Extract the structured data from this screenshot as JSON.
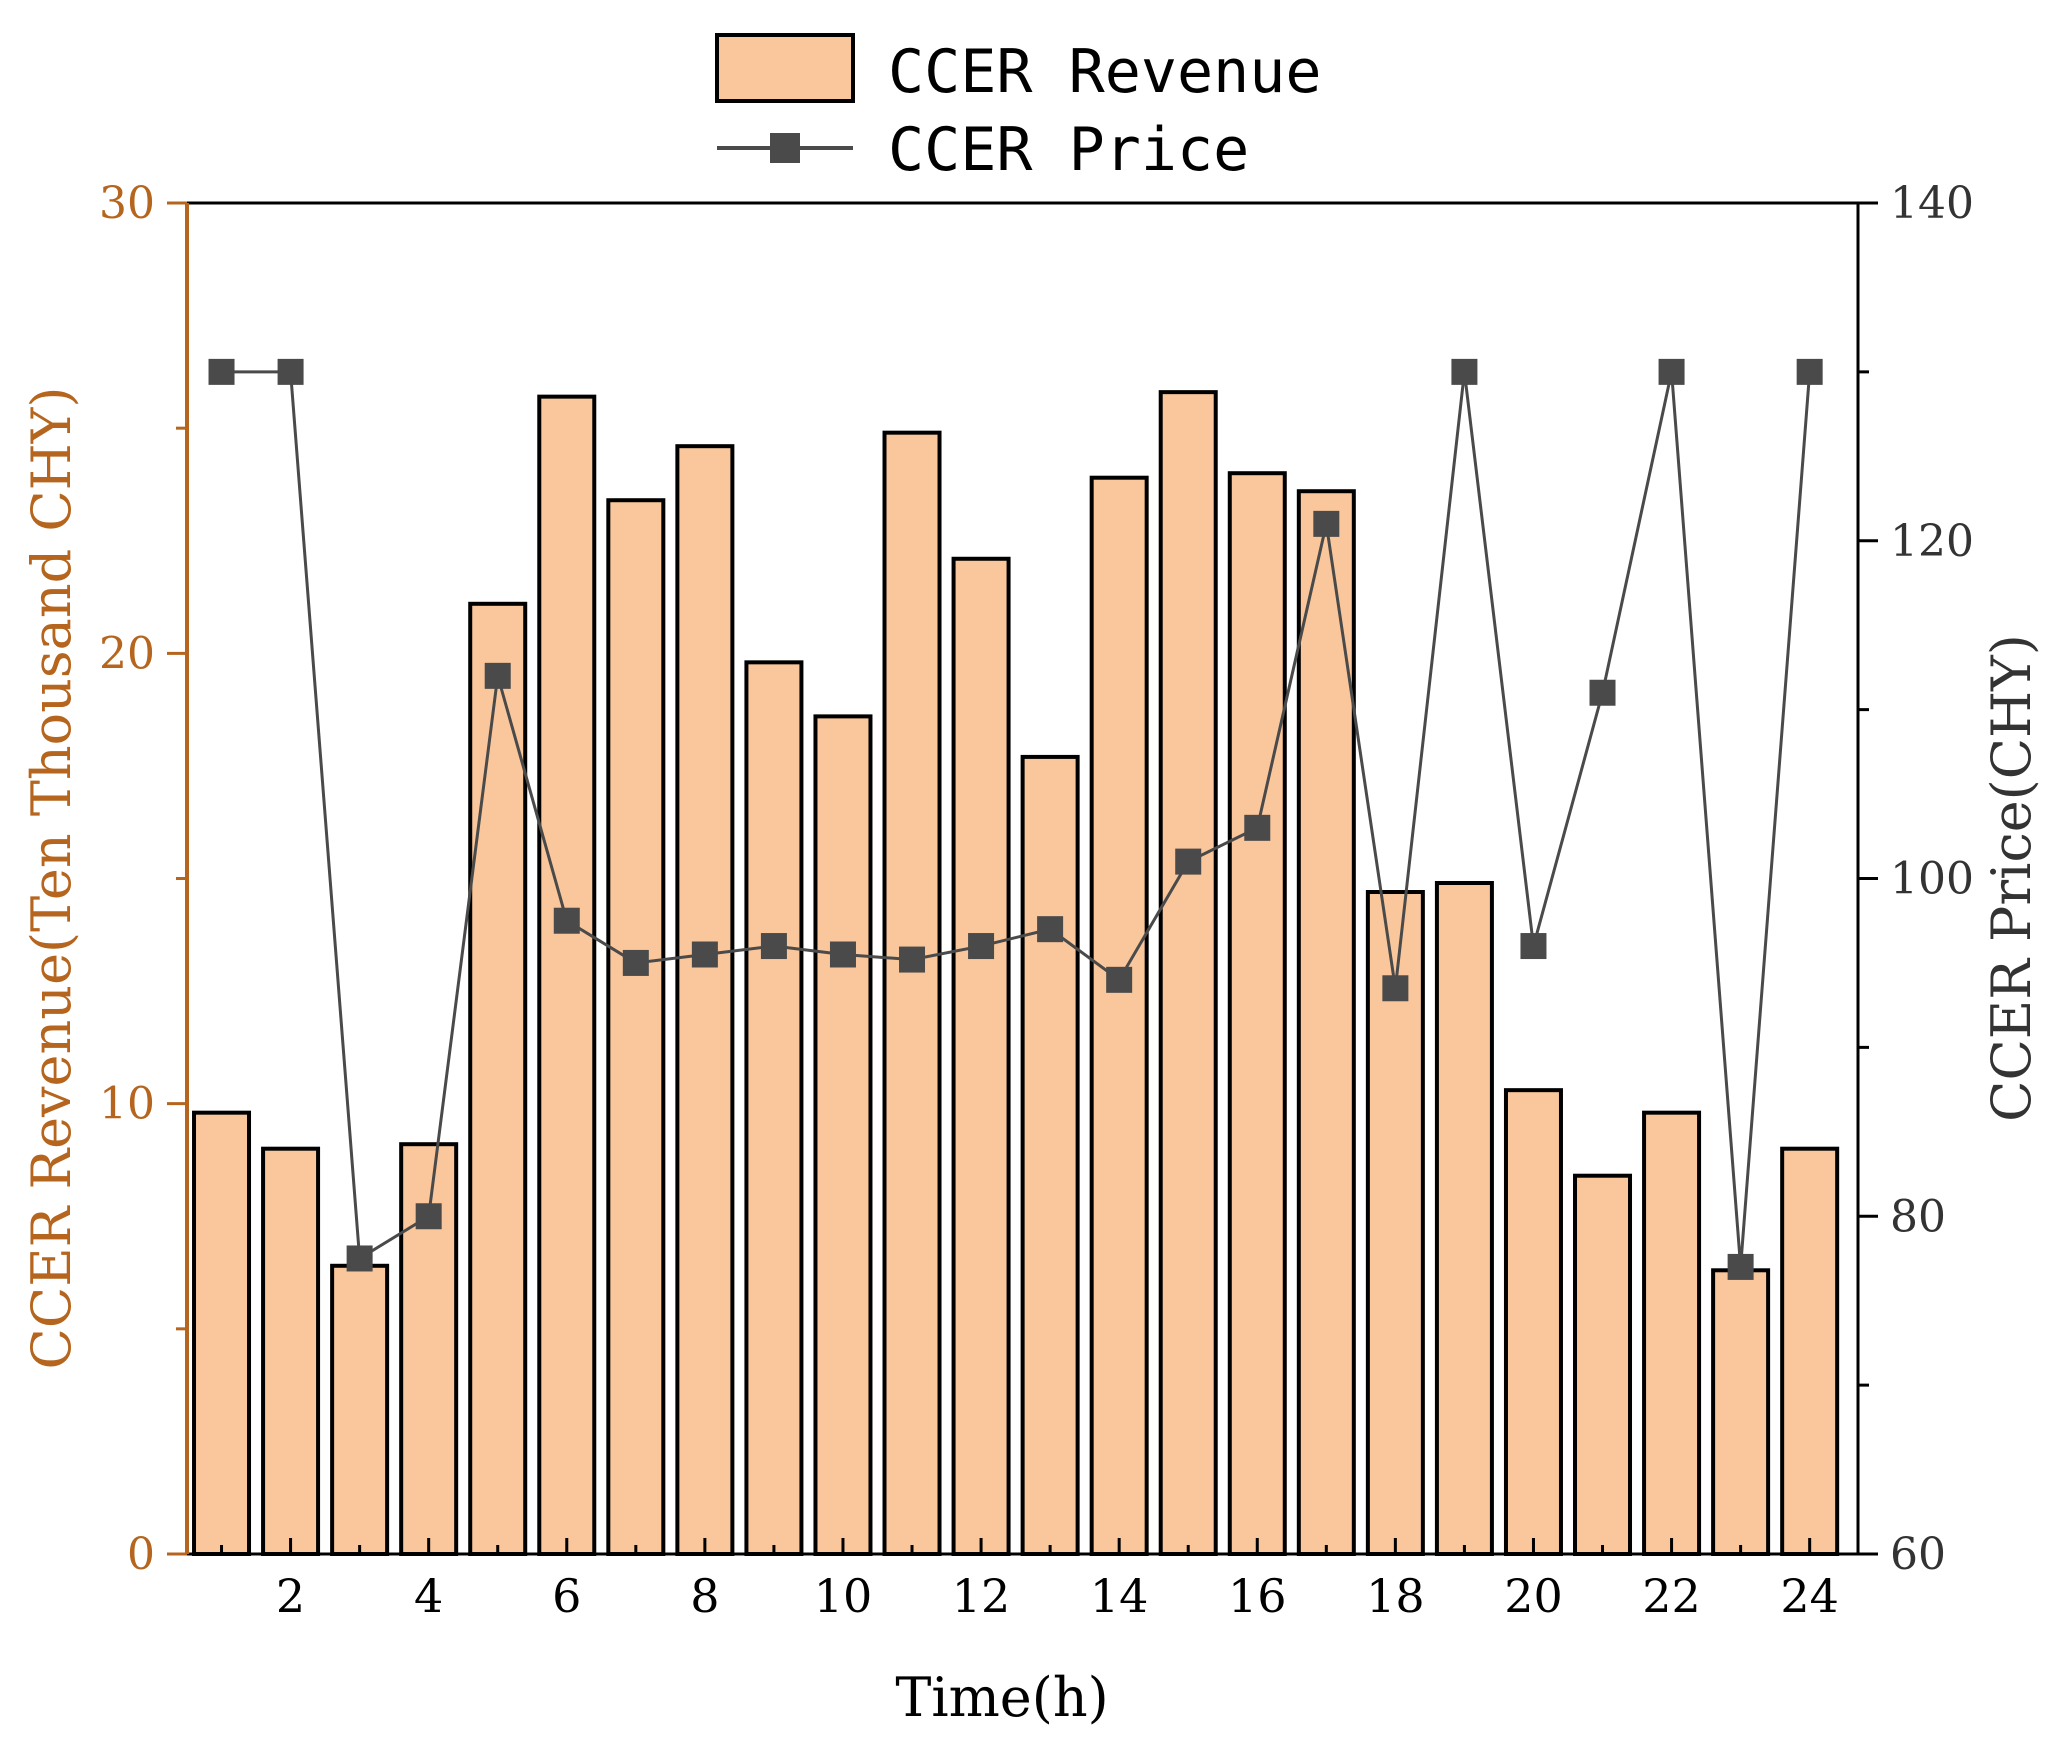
{
  "chart_data": {
    "type": "bar+line",
    "x": [
      1,
      2,
      3,
      4,
      5,
      6,
      7,
      8,
      9,
      10,
      11,
      12,
      13,
      14,
      15,
      16,
      17,
      18,
      19,
      20,
      21,
      22,
      23,
      24
    ],
    "x_ticks": [
      "2",
      "4",
      "6",
      "8",
      "10",
      "12",
      "14",
      "16",
      "18",
      "20",
      "22",
      "24"
    ],
    "xlabel": "Time(h)",
    "series": [
      {
        "name": "CCER Revenue",
        "type": "bar",
        "axis": "left",
        "values": [
          9.8,
          9.0,
          6.4,
          9.1,
          21.1,
          25.7,
          23.4,
          24.6,
          19.8,
          18.6,
          24.9,
          22.1,
          17.7,
          23.9,
          25.8,
          24.0,
          23.6,
          14.7,
          14.9,
          10.3,
          8.4,
          9.8,
          6.3,
          9.0
        ]
      },
      {
        "name": "CCER Price",
        "type": "line",
        "axis": "right",
        "values": [
          130,
          130,
          77.5,
          80,
          112,
          97.5,
          95,
          95.5,
          96,
          95.5,
          95.2,
          96,
          97,
          94,
          101,
          103,
          121,
          93.5,
          130,
          96,
          111,
          130,
          77,
          130
        ]
      }
    ],
    "y_left": {
      "label": "CCER Revenue(Ten Thousand CHY)",
      "lim": [
        0,
        30
      ],
      "ticks": [
        "0",
        "10",
        "20",
        "30"
      ],
      "color": "#b5651d"
    },
    "y_right": {
      "label": "CCER Price(CHY)",
      "lim": [
        60,
        140
      ],
      "ticks": [
        "60",
        "80",
        "100",
        "120",
        "140"
      ]
    },
    "legend": [
      "CCER Revenue",
      "CCER Price"
    ],
    "legend_position": "top-center",
    "colors": {
      "bar_fill": "#f9c79b",
      "bar_stroke": "#000000",
      "line": "#4a4a4a",
      "marker": "#4a4a4a",
      "left_axis": "#b5651d"
    }
  }
}
